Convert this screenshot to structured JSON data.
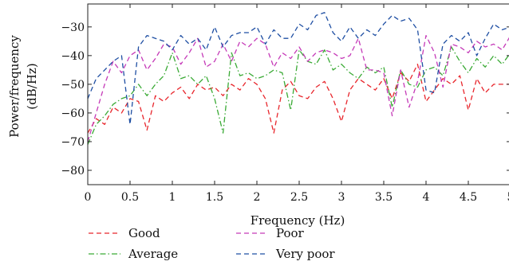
{
  "chart_data": {
    "type": "line",
    "title": "",
    "xlabel": "Frequency (Hz)",
    "ylabel": [
      "Power/frequency",
      "(dB/Hz)"
    ],
    "xlim": [
      0,
      5
    ],
    "ylim": [
      -85,
      -22
    ],
    "xticks": [
      0,
      0.5,
      1,
      1.5,
      2,
      2.5,
      3,
      3.5,
      4,
      4.5,
      5
    ],
    "xtick_labels": [
      "0",
      "0.5",
      "1",
      "1.5",
      "2",
      "2.5",
      "3",
      "3.5",
      "4",
      "4.5",
      "5"
    ],
    "yticks": [
      -80,
      -70,
      -60,
      -50,
      -40,
      -30
    ],
    "ytick_labels": [
      "−80",
      "−70",
      "−60",
      "−50",
      "−40",
      "−30"
    ],
    "grid": false,
    "legend_position": "below",
    "x": [
      0,
      0.1,
      0.2,
      0.3,
      0.4,
      0.5,
      0.6,
      0.7,
      0.8,
      0.9,
      1,
      1.1,
      1.2,
      1.3,
      1.4,
      1.5,
      1.6,
      1.7,
      1.8,
      1.9,
      2,
      2.1,
      2.2,
      2.3,
      2.4,
      2.5,
      2.6,
      2.7,
      2.8,
      2.9,
      3,
      3.1,
      3.2,
      3.3,
      3.4,
      3.5,
      3.6,
      3.7,
      3.8,
      3.9,
      4,
      4.1,
      4.2,
      4.3,
      4.4,
      4.5,
      4.6,
      4.7,
      4.8,
      4.9,
      5
    ],
    "series": [
      {
        "name": "Good",
        "color": "#e8262c",
        "dash": "6,4",
        "values": [
          -67,
          -62,
          -64,
          -58,
          -60,
          -55,
          -56,
          -66,
          -54,
          -56,
          -53,
          -51,
          -55,
          -50,
          -52,
          -51,
          -54,
          -50,
          -52,
          -48,
          -50,
          -55,
          -67,
          -52,
          -49,
          -54,
          -55,
          -51,
          -49,
          -55,
          -63,
          -52,
          -48,
          -50,
          -52,
          -48,
          -55,
          -46,
          -49,
          -43,
          -56,
          -52,
          -48,
          -50,
          -47,
          -59,
          -48,
          -53,
          -50,
          -50,
          -50
        ]
      },
      {
        "name": "Average",
        "color": "#3aaa35",
        "dash": "7,3,1.5,3",
        "values": [
          -71,
          -64,
          -61,
          -57,
          -55,
          -54,
          -50,
          -54,
          -50,
          -47,
          -39,
          -48,
          -47,
          -50,
          -47,
          -55,
          -67,
          -39,
          -47,
          -46,
          -48,
          -47,
          -45,
          -46,
          -59,
          -38,
          -42,
          -43,
          -38,
          -45,
          -43,
          -46,
          -48,
          -44,
          -46,
          -44,
          -58,
          -45,
          -50,
          -51,
          -45,
          -44,
          -47,
          -37,
          -42,
          -46,
          -41,
          -44,
          -40,
          -43,
          -39
        ]
      },
      {
        "name": "Poor",
        "color": "#c53ab8",
        "dash": "6,4",
        "values": [
          -70,
          -60,
          -50,
          -42,
          -46,
          -40,
          -38,
          -45,
          -41,
          -36,
          -37,
          -43,
          -39,
          -34,
          -44,
          -42,
          -36,
          -42,
          -35,
          -37,
          -34,
          -36,
          -44,
          -39,
          -41,
          -37,
          -42,
          -39,
          -38,
          -39,
          -41,
          -40,
          -34,
          -45,
          -45,
          -46,
          -61,
          -45,
          -58,
          -49,
          -33,
          -39,
          -51,
          -36,
          -37,
          -39,
          -35,
          -37,
          -36,
          -38,
          -33
        ]
      },
      {
        "name": "Very poor",
        "color": "#1f4fa3",
        "dash": "6,4",
        "values": [
          -55,
          -48,
          -45,
          -42,
          -40,
          -64,
          -37,
          -33,
          -34,
          -35,
          -38,
          -33,
          -36,
          -34,
          -38,
          -30,
          -37,
          -33,
          -32,
          -32,
          -30,
          -36,
          -31,
          -34,
          -34,
          -29,
          -31,
          -26,
          -25,
          -32,
          -35,
          -30,
          -34,
          -31,
          -33,
          -29,
          -26,
          -28,
          -27,
          -31,
          -52,
          -53,
          -36,
          -33,
          -35,
          -32,
          -40,
          -34,
          -29,
          -31,
          -30
        ]
      }
    ]
  }
}
